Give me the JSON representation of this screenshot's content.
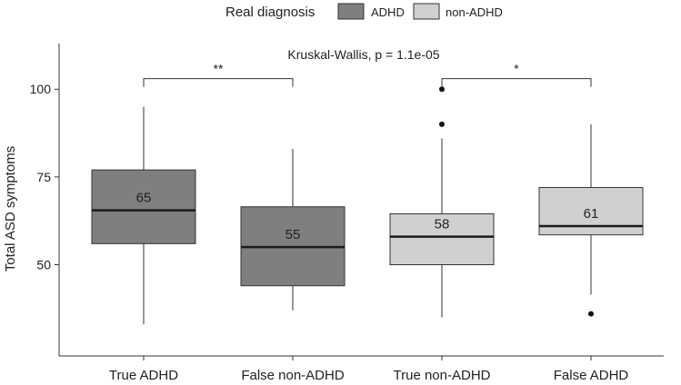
{
  "chart_data": {
    "type": "box",
    "title": "",
    "subtitle": "Kruskal-Wallis, p = 1.1e-05",
    "xlabel": "",
    "ylabel": "Total ASD symptoms",
    "ylim": [
      24,
      113
    ],
    "yticks": [
      50,
      75,
      100
    ],
    "grid": false,
    "legend": {
      "title": "Real diagnosis",
      "placement": "top",
      "entries": [
        {
          "name": "ADHD",
          "color": "#7f7f7f"
        },
        {
          "name": "non-ADHD",
          "color": "#d0d0d0"
        }
      ]
    },
    "categories": [
      "True ADHD",
      "False non-ADHD",
      "True non-ADHD",
      "False ADHD"
    ],
    "boxes": [
      {
        "category": "True ADHD",
        "group": "ADHD",
        "whisker_low": 33,
        "q1": 56,
        "median": 65.5,
        "q3": 77,
        "whisker_high": 95,
        "mean_label": "65",
        "outliers": []
      },
      {
        "category": "False non-ADHD",
        "group": "ADHD",
        "whisker_low": 37,
        "q1": 44,
        "median": 55,
        "q3": 66.5,
        "whisker_high": 83,
        "mean_label": "55",
        "outliers": []
      },
      {
        "category": "True non-ADHD",
        "group": "non-ADHD",
        "whisker_low": 35,
        "q1": 50,
        "median": 58,
        "q3": 64.5,
        "whisker_high": 86,
        "mean_label": "58",
        "outliers": [
          90,
          100
        ]
      },
      {
        "category": "False ADHD",
        "group": "non-ADHD",
        "whisker_low": 41.5,
        "q1": 58.5,
        "median": 61,
        "q3": 72,
        "whisker_high": 90,
        "mean_label": "61",
        "outliers": [
          36
        ]
      }
    ],
    "comparisons": [
      {
        "from": "True ADHD",
        "to": "False non-ADHD",
        "level": 103,
        "label": "**"
      },
      {
        "from": "True non-ADHD",
        "to": "False ADHD",
        "level": 103,
        "label": "*"
      }
    ],
    "colors": {
      "ADHD": "#7f7f7f",
      "non-ADHD": "#d0d0d0"
    }
  }
}
